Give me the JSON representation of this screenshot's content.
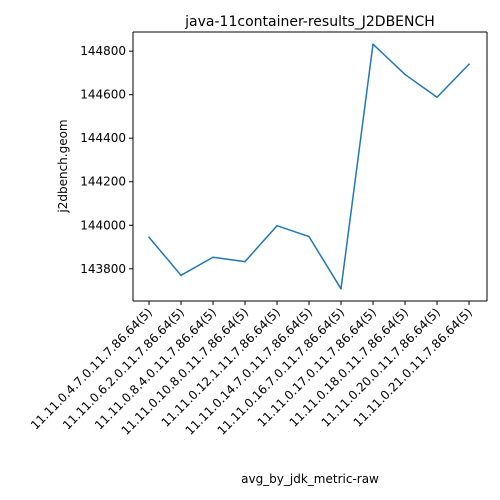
{
  "chart_data": {
    "type": "line",
    "title": "java-11container-results_J2DBENCH",
    "xlabel": "avg_by_jdk_metric-raw",
    "ylabel": "j2dbench.geom",
    "categories": [
      "11.11.0.4.7.0.11.7.86.64(5)",
      "11.11.0.6.2.0.11.7.86.64(5)",
      "11.11.0.8.4.0.11.7.86.64(5)",
      "11.11.0.10.8.0.11.7.86.64(5)",
      "11.11.0.12.1.11.7.86.64(5)",
      "11.11.0.14.7.0.11.7.86.64(5)",
      "11.11.0.16.7.0.11.7.86.64(5)",
      "11.11.0.17.0.11.7.86.64(5)",
      "11.11.0.18.0.11.7.86.64(5)",
      "11.11.0.20.0.11.7.86.64(5)",
      "11.11.0.21.0.11.7.86.64(5)"
    ],
    "series": [
      {
        "values": [
          143945,
          143770,
          143853,
          143833,
          143998,
          143948,
          143708,
          144832,
          144693,
          144588,
          144740
        ]
      }
    ],
    "yticks": [
      143800,
      144000,
      144200,
      144400,
      144600,
      144800
    ],
    "ylim": [
      143652,
      144888
    ],
    "grid": false,
    "legend": "none",
    "colors": {
      "line": "#1f77b4",
      "axis": "#000000"
    }
  }
}
